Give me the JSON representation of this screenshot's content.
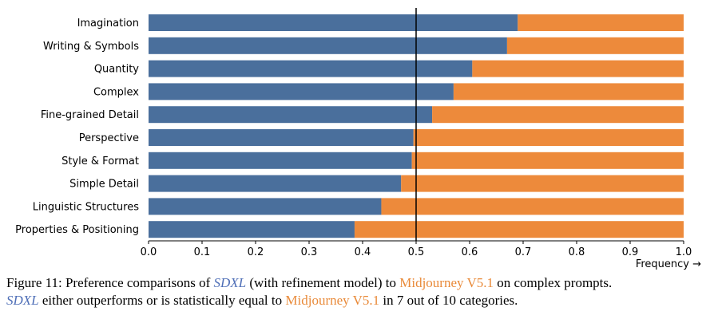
{
  "chart_data": {
    "type": "bar",
    "orientation": "horizontal",
    "stacked": true,
    "categories": [
      "Imagination",
      "Writing & Symbols",
      "Quantity",
      "Complex",
      "Fine-grained Detail",
      "Perspective",
      "Style & Format",
      "Simple Detail",
      "Linguistic Structures",
      "Properties & Positioning"
    ],
    "series": [
      {
        "values": [
          0.69,
          0.67,
          0.605,
          0.57,
          0.53,
          0.495,
          0.492,
          0.472,
          0.435,
          0.385
        ],
        "color": "#4a6f9c"
      },
      {
        "values": [
          0.31,
          0.33,
          0.395,
          0.43,
          0.47,
          0.505,
          0.508,
          0.528,
          0.565,
          0.615
        ],
        "color": "#ed8a3b"
      }
    ],
    "xlabel": "Frequency →",
    "xlim": [
      0.0,
      1.0
    ],
    "xticks": [
      "0.0",
      "0.1",
      "0.2",
      "0.3",
      "0.4",
      "0.5",
      "0.6",
      "0.7",
      "0.8",
      "0.9",
      "1.0"
    ],
    "reference_line": 0.5,
    "grid": false,
    "legend": "none"
  },
  "caption": {
    "line1_prefix": "Figure 11: Preference comparisons of ",
    "sdxl": "SDXL",
    "line1_mid": " (with refinement model) to ",
    "midjourney": "Midjourney V5.1",
    "line1_suffix": " on complex prompts.",
    "line2_mid": " either outperforms or is statistically equal to ",
    "line2_suffix": " in 7 out of 10 categories.",
    "sdxl_color": "#4f6fb7",
    "midjourney_color": "#e98a39"
  }
}
